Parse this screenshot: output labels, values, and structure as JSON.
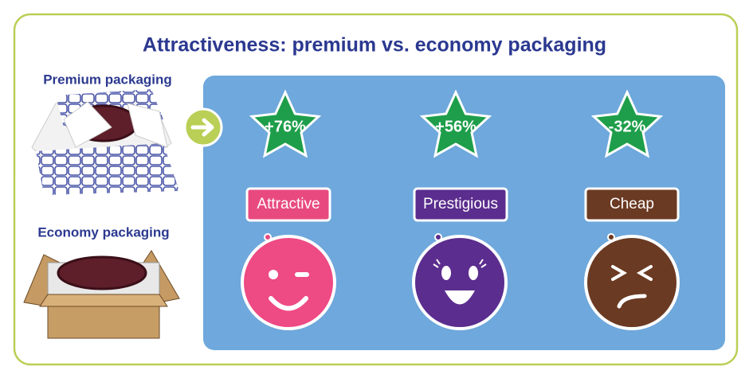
{
  "header": {
    "title": "Attractiveness: premium vs. economy packaging"
  },
  "packaging": {
    "premium": "Premium packaging",
    "economy": "Economy packaging"
  },
  "results": [
    {
      "change": "+76%",
      "label": "Attractive"
    },
    {
      "change": "+56%",
      "label": "Prestigious"
    },
    {
      "change": "-32%",
      "label": "Cheap"
    }
  ]
}
